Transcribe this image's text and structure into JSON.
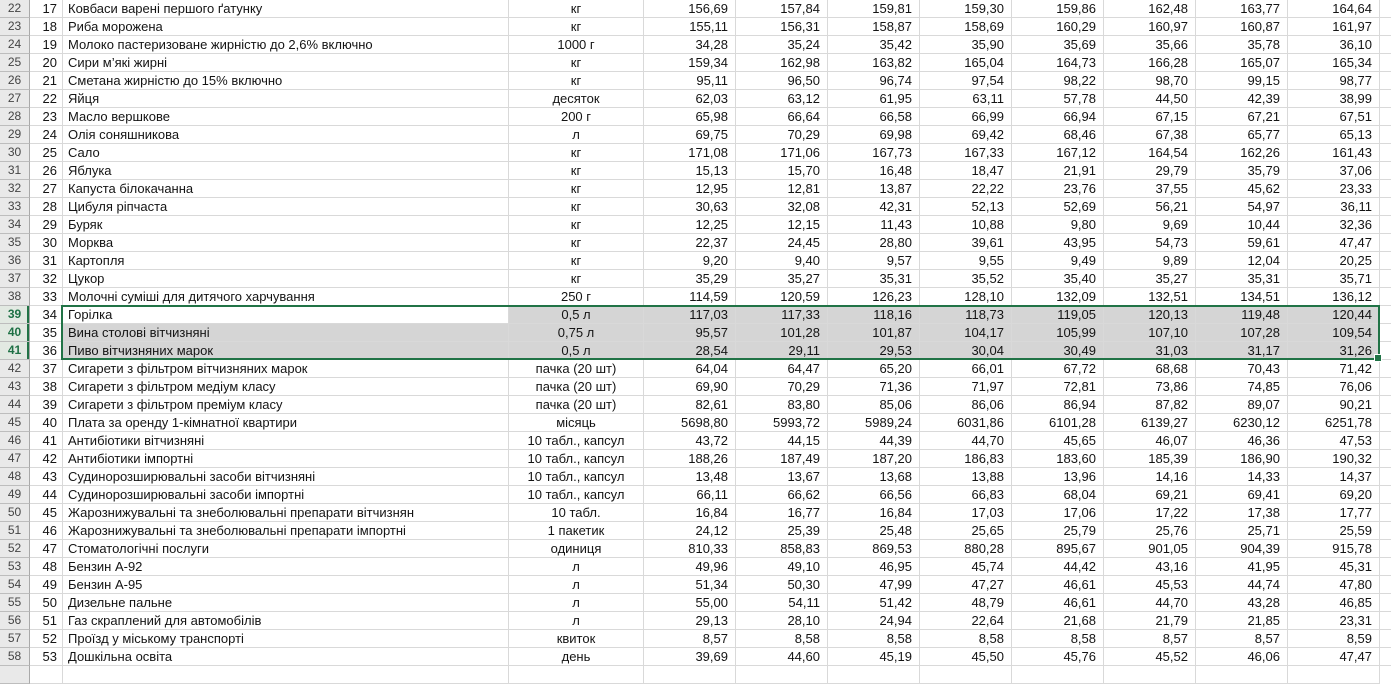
{
  "app": {
    "type": "spreadsheet-grid",
    "language": "uk",
    "colors": {
      "accent_green": "#217346",
      "selection_fill": "#d5d5d5",
      "row_header_bg": "#e9e9e9",
      "row_header_selected_bg": "#e2e9e2",
      "gridline": "#d9d9d9"
    }
  },
  "selection": {
    "selected_sheet_rows": [
      39,
      40,
      41
    ],
    "active_cell_sheet_row": 39,
    "active_cell_value": "Горілка"
  },
  "table": {
    "rows": [
      {
        "rh": "22",
        "n": "17",
        "name": "Ковбаси варені першого ґатунку",
        "unit": "кг",
        "values": [
          "156,69",
          "157,84",
          "159,81",
          "159,30",
          "159,86",
          "162,48",
          "163,77",
          "164,64"
        ]
      },
      {
        "rh": "23",
        "n": "18",
        "name": "Риба морожена",
        "unit": "кг",
        "values": [
          "155,11",
          "156,31",
          "158,87",
          "158,69",
          "160,29",
          "160,97",
          "160,87",
          "161,97"
        ]
      },
      {
        "rh": "24",
        "n": "19",
        "name": "Молоко пастеризоване жирністю до 2,6% включно",
        "unit": "1000 г",
        "values": [
          "34,28",
          "35,24",
          "35,42",
          "35,90",
          "35,69",
          "35,66",
          "35,78",
          "36,10"
        ]
      },
      {
        "rh": "25",
        "n": "20",
        "name": "Сири м’які жирні",
        "unit": "кг",
        "values": [
          "159,34",
          "162,98",
          "163,82",
          "165,04",
          "164,73",
          "166,28",
          "165,07",
          "165,34"
        ]
      },
      {
        "rh": "26",
        "n": "21",
        "name": "Сметана жирністю до 15% включно",
        "unit": "кг",
        "values": [
          "95,11",
          "96,50",
          "96,74",
          "97,54",
          "98,22",
          "98,70",
          "99,15",
          "98,77"
        ]
      },
      {
        "rh": "27",
        "n": "22",
        "name": "Яйця",
        "unit": "десяток",
        "values": [
          "62,03",
          "63,12",
          "61,95",
          "63,11",
          "57,78",
          "44,50",
          "42,39",
          "38,99"
        ]
      },
      {
        "rh": "28",
        "n": "23",
        "name": "Масло вершкове",
        "unit": "200 г",
        "values": [
          "65,98",
          "66,64",
          "66,58",
          "66,99",
          "66,94",
          "67,15",
          "67,21",
          "67,51"
        ]
      },
      {
        "rh": "29",
        "n": "24",
        "name": "Олія соняшникова",
        "unit": "л",
        "values": [
          "69,75",
          "70,29",
          "69,98",
          "69,42",
          "68,46",
          "67,38",
          "65,77",
          "65,13"
        ]
      },
      {
        "rh": "30",
        "n": "25",
        "name": "Сало",
        "unit": "кг",
        "values": [
          "171,08",
          "171,06",
          "167,73",
          "167,33",
          "167,12",
          "164,54",
          "162,26",
          "161,43"
        ]
      },
      {
        "rh": "31",
        "n": "26",
        "name": "Яблука",
        "unit": "кг",
        "values": [
          "15,13",
          "15,70",
          "16,48",
          "18,47",
          "21,91",
          "29,79",
          "35,79",
          "37,06"
        ]
      },
      {
        "rh": "32",
        "n": "27",
        "name": "Капуста білокачанна",
        "unit": "кг",
        "values": [
          "12,95",
          "12,81",
          "13,87",
          "22,22",
          "23,76",
          "37,55",
          "45,62",
          "23,33"
        ]
      },
      {
        "rh": "33",
        "n": "28",
        "name": "Цибуля ріпчаста",
        "unit": "кг",
        "values": [
          "30,63",
          "32,08",
          "42,31",
          "52,13",
          "52,69",
          "56,21",
          "54,97",
          "36,11"
        ]
      },
      {
        "rh": "34",
        "n": "29",
        "name": "Буряк",
        "unit": "кг",
        "values": [
          "12,25",
          "12,15",
          "11,43",
          "10,88",
          "9,80",
          "9,69",
          "10,44",
          "32,36"
        ]
      },
      {
        "rh": "35",
        "n": "30",
        "name": "Морква",
        "unit": "кг",
        "values": [
          "22,37",
          "24,45",
          "28,80",
          "39,61",
          "43,95",
          "54,73",
          "59,61",
          "47,47"
        ]
      },
      {
        "rh": "36",
        "n": "31",
        "name": "Картопля",
        "unit": "кг",
        "values": [
          "9,20",
          "9,40",
          "9,57",
          "9,55",
          "9,49",
          "9,89",
          "12,04",
          "20,25"
        ]
      },
      {
        "rh": "37",
        "n": "32",
        "name": "Цукор",
        "unit": "кг",
        "values": [
          "35,29",
          "35,27",
          "35,31",
          "35,52",
          "35,40",
          "35,27",
          "35,31",
          "35,71"
        ]
      },
      {
        "rh": "38",
        "n": "33",
        "name": "Молочні суміші для дитячого харчування",
        "unit": "250 г",
        "values": [
          "114,59",
          "120,59",
          "126,23",
          "128,10",
          "132,09",
          "132,51",
          "134,51",
          "136,12"
        ]
      },
      {
        "rh": "39",
        "n": "34",
        "name": "Горілка",
        "unit": "0,5 л",
        "values": [
          "117,03",
          "117,33",
          "118,16",
          "118,73",
          "119,05",
          "120,13",
          "119,48",
          "120,44"
        ]
      },
      {
        "rh": "40",
        "n": "35",
        "name": "Вина столові вітчизняні",
        "unit": "0,75 л",
        "values": [
          "95,57",
          "101,28",
          "101,87",
          "104,17",
          "105,99",
          "107,10",
          "107,28",
          "109,54"
        ]
      },
      {
        "rh": "41",
        "n": "36",
        "name": "Пиво вітчизняних марок",
        "unit": "0,5 л",
        "values": [
          "28,54",
          "29,11",
          "29,53",
          "30,04",
          "30,49",
          "31,03",
          "31,17",
          "31,26"
        ]
      },
      {
        "rh": "42",
        "n": "37",
        "name": "Сигарети з фільтром вітчизняних марок",
        "unit": "пачка (20 шт)",
        "values": [
          "64,04",
          "64,47",
          "65,20",
          "66,01",
          "67,72",
          "68,68",
          "70,43",
          "71,42"
        ]
      },
      {
        "rh": "43",
        "n": "38",
        "name": "Сигарети з фільтром медіум класу",
        "unit": "пачка (20 шт)",
        "values": [
          "69,90",
          "70,29",
          "71,36",
          "71,97",
          "72,81",
          "73,86",
          "74,85",
          "76,06"
        ]
      },
      {
        "rh": "44",
        "n": "39",
        "name": "Сигарети з фільтром преміум класу",
        "unit": "пачка (20 шт)",
        "values": [
          "82,61",
          "83,80",
          "85,06",
          "86,06",
          "86,94",
          "87,82",
          "89,07",
          "90,21"
        ]
      },
      {
        "rh": "45",
        "n": "40",
        "name": "Плата за оренду 1-кімнатної квартири",
        "unit": "місяць",
        "values": [
          "5698,80",
          "5993,72",
          "5989,24",
          "6031,86",
          "6101,28",
          "6139,27",
          "6230,12",
          "6251,78"
        ]
      },
      {
        "rh": "46",
        "n": "41",
        "name": "Антибіотики вітчизняні",
        "unit": "10 табл., капсул",
        "values": [
          "43,72",
          "44,15",
          "44,39",
          "44,70",
          "45,65",
          "46,07",
          "46,36",
          "47,53"
        ]
      },
      {
        "rh": "47",
        "n": "42",
        "name": "Антибіотики імпортні",
        "unit": "10 табл., капсул",
        "values": [
          "188,26",
          "187,49",
          "187,20",
          "186,83",
          "183,60",
          "185,39",
          "186,90",
          "190,32"
        ]
      },
      {
        "rh": "48",
        "n": "43",
        "name": "Судинорозширювальні засоби вітчизняні",
        "unit": "10 табл., капсул",
        "values": [
          "13,48",
          "13,67",
          "13,68",
          "13,88",
          "13,96",
          "14,16",
          "14,33",
          "14,37"
        ]
      },
      {
        "rh": "49",
        "n": "44",
        "name": "Судинорозширювальні засоби імпортні",
        "unit": "10 табл., капсул",
        "values": [
          "66,11",
          "66,62",
          "66,56",
          "66,83",
          "68,04",
          "69,21",
          "69,41",
          "69,20"
        ]
      },
      {
        "rh": "50",
        "n": "45",
        "name": "Жарознижувальні та знеболювальні препарати вітчизнян",
        "unit": "10 табл.",
        "values": [
          "16,84",
          "16,77",
          "16,84",
          "17,03",
          "17,06",
          "17,22",
          "17,38",
          "17,77"
        ]
      },
      {
        "rh": "51",
        "n": "46",
        "name": "Жарознижувальні та знеболювальні препарати імпортні",
        "unit": "1 пакетик",
        "values": [
          "24,12",
          "25,39",
          "25,48",
          "25,65",
          "25,79",
          "25,76",
          "25,71",
          "25,59"
        ]
      },
      {
        "rh": "52",
        "n": "47",
        "name": "Стоматологічні послуги",
        "unit": "одиниця",
        "values": [
          "810,33",
          "858,83",
          "869,53",
          "880,28",
          "895,67",
          "901,05",
          "904,39",
          "915,78"
        ]
      },
      {
        "rh": "53",
        "n": "48",
        "name": "Бензин А-92",
        "unit": "л",
        "values": [
          "49,96",
          "49,10",
          "46,95",
          "45,74",
          "44,42",
          "43,16",
          "41,95",
          "45,31"
        ]
      },
      {
        "rh": "54",
        "n": "49",
        "name": "Бензин А-95",
        "unit": "л",
        "values": [
          "51,34",
          "50,30",
          "47,99",
          "47,27",
          "46,61",
          "45,53",
          "44,74",
          "47,80"
        ]
      },
      {
        "rh": "55",
        "n": "50",
        "name": "Дизельне пальне",
        "unit": "л",
        "values": [
          "55,00",
          "54,11",
          "51,42",
          "48,79",
          "46,61",
          "44,70",
          "43,28",
          "46,85"
        ]
      },
      {
        "rh": "56",
        "n": "51",
        "name": "Газ скраплений для автомобілів",
        "unit": "л",
        "values": [
          "29,13",
          "28,10",
          "24,94",
          "22,64",
          "21,68",
          "21,79",
          "21,85",
          "23,31"
        ]
      },
      {
        "rh": "57",
        "n": "52",
        "name": "Проїзд у міському транспорті",
        "unit": "квиток",
        "values": [
          "8,57",
          "8,58",
          "8,58",
          "8,58",
          "8,58",
          "8,57",
          "8,57",
          "8,59"
        ]
      },
      {
        "rh": "58",
        "n": "53",
        "name": "Дошкільна освіта",
        "unit": "день",
        "values": [
          "39,69",
          "44,60",
          "45,19",
          "45,50",
          "45,76",
          "45,52",
          "46,06",
          "47,47"
        ]
      }
    ]
  }
}
